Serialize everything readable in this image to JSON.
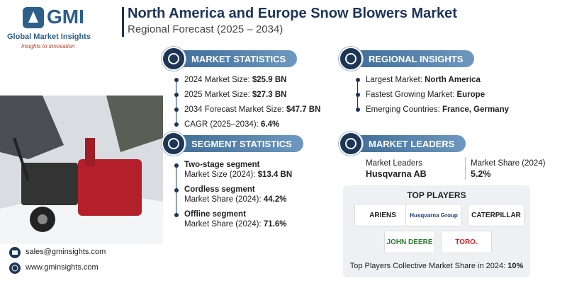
{
  "header": {
    "title": "North America and Europe Snow Blowers Market",
    "subtitle": "Regional Forecast (2025 – 2034)"
  },
  "logo": {
    "mark": "GMI",
    "company": "Global Market Insights",
    "tagline": "Insights to Innovation"
  },
  "contact": {
    "email": "sales@gminsights.com",
    "website": "www.gminsights.com"
  },
  "market_statistics": {
    "heading": "MARKET STATISTICS",
    "items": [
      {
        "label": "2024 Market Size:",
        "value": "$25.9 BN"
      },
      {
        "label": "2025 Market Size:",
        "value": "$27.3 BN"
      },
      {
        "label": "2034 Forecast Market Size:",
        "value": "$47.7 BN"
      },
      {
        "label": "CAGR (2025–2034):",
        "value": "6.4%"
      }
    ]
  },
  "regional_insights": {
    "heading": "REGIONAL INSIGHTS",
    "items": [
      {
        "label": "Largest Market:",
        "value": "North America"
      },
      {
        "label": "Fastest Growing Market:",
        "value": "Europe"
      },
      {
        "label": "Emerging Countries:",
        "value": "France, Germany"
      }
    ]
  },
  "segment_statistics": {
    "heading": "SEGMENT STATISTICS",
    "items": [
      {
        "name": "Two-stage segment",
        "label": "Market Size (2024):",
        "value": "$13.4 BN"
      },
      {
        "name": "Cordless segment",
        "label": "Market Share (2024):",
        "value": "44.2%"
      },
      {
        "name": "Offline segment",
        "label": "Market Share (2024):",
        "value": "71.6%"
      }
    ]
  },
  "market_leaders": {
    "heading": "MARKET LEADERS",
    "leader_label": "Market Leaders",
    "leader": "Husqvarna AB",
    "share_label": "Market Share (2024)",
    "share": "5.2%"
  },
  "top_players": {
    "heading": "TOP PLAYERS",
    "players": [
      "ARIENS",
      "Husqvarna Group",
      "CATERPILLAR",
      "JOHN DEERE",
      "TORO."
    ],
    "footer_label": "Top Players Collective Market Share in 2024:",
    "footer_value": "10%"
  }
}
